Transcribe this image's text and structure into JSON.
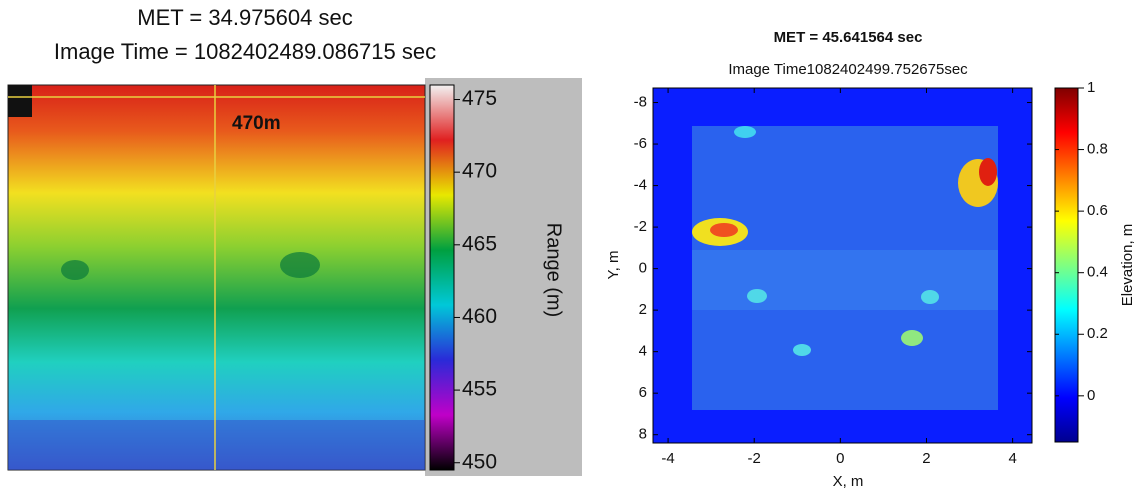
{
  "chart_data": [
    {
      "type": "image",
      "title": "MET = 34.975604 sec",
      "subtitle": "Image Time = 1082402489.086715 sec",
      "annotation": "470m",
      "colorbar": {
        "label": "Range (m)",
        "lim": [
          449.5,
          476
        ],
        "ticks": [
          450,
          455,
          460,
          465,
          470,
          475
        ],
        "colormap": [
          "#000000",
          "#c000c8",
          "#2a2ad8",
          "#00c8d8",
          "#00a040",
          "#e8e800",
          "#e02020",
          "#f2f2f2"
        ]
      }
    },
    {
      "type": "image",
      "title": "MET = 45.641564 sec",
      "subtitle": "Image Time1082402499.752675sec",
      "xlabel": "X, m",
      "ylabel": "Y, m",
      "xlim": [
        -4.35,
        4.45
      ],
      "xticks": [
        -4,
        -2,
        0,
        2,
        4
      ],
      "ylim": [
        -8.7,
        8.4
      ],
      "yticks": [
        -8,
        -6,
        -4,
        -2,
        0,
        2,
        4,
        6,
        8
      ],
      "y_reversed": true,
      "colorbar": {
        "label": "Elevation, m",
        "lim": [
          -0.15,
          1
        ],
        "ticks": [
          0,
          0.2,
          0.4,
          0.6,
          0.8,
          1
        ],
        "colormap": [
          "#00008f",
          "#0000ff",
          "#0080ff",
          "#00ffff",
          "#80ff80",
          "#ffff00",
          "#ff8000",
          "#ff0000",
          "#800000"
        ]
      }
    }
  ]
}
